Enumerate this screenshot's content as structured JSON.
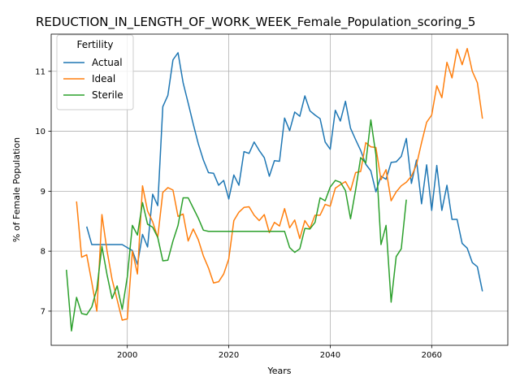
{
  "chart_data": {
    "type": "line",
    "title": "REDUCTION_IN_LENGTH_OF_WORK_WEEK_Female_Population_scoring_5",
    "xlabel": "Years",
    "ylabel": "% of Female Population",
    "xlim": [
      1985,
      2075
    ],
    "ylim": [
      6.43,
      11.62
    ],
    "xticks": [
      2000,
      2020,
      2040,
      2060
    ],
    "yticks": [
      7,
      8,
      9,
      10,
      11
    ],
    "grid": true,
    "legend": {
      "title": "Fertility",
      "placement": "upper-left"
    },
    "series": [
      {
        "name": "Actual",
        "color": "#1f77b4",
        "points": [
          [
            1992,
            8.41
          ],
          [
            1993,
            8.11
          ],
          [
            1994,
            8.11
          ],
          [
            1995,
            8.11
          ],
          [
            1996,
            8.11
          ],
          [
            1997,
            8.11
          ],
          [
            1998,
            8.11
          ],
          [
            1999,
            8.11
          ],
          [
            2000,
            8.06
          ],
          [
            2001,
            8.01
          ],
          [
            2002,
            7.78
          ],
          [
            2003,
            8.28
          ],
          [
            2004,
            8.07
          ],
          [
            2005,
            8.95
          ],
          [
            2006,
            8.76
          ],
          [
            2007,
            10.41
          ],
          [
            2008,
            10.6
          ],
          [
            2009,
            11.19
          ],
          [
            2010,
            11.31
          ],
          [
            2011,
            10.81
          ],
          [
            2012,
            10.47
          ],
          [
            2013,
            10.12
          ],
          [
            2014,
            9.79
          ],
          [
            2015,
            9.52
          ],
          [
            2016,
            9.31
          ],
          [
            2017,
            9.3
          ],
          [
            2018,
            9.1
          ],
          [
            2019,
            9.18
          ],
          [
            2020,
            8.87
          ],
          [
            2021,
            9.27
          ],
          [
            2022,
            9.1
          ],
          [
            2023,
            9.66
          ],
          [
            2024,
            9.63
          ],
          [
            2025,
            9.82
          ],
          [
            2026,
            9.68
          ],
          [
            2027,
            9.56
          ],
          [
            2028,
            9.25
          ],
          [
            2029,
            9.51
          ],
          [
            2030,
            9.5
          ],
          [
            2031,
            10.22
          ],
          [
            2032,
            10.01
          ],
          [
            2033,
            10.32
          ],
          [
            2034,
            10.25
          ],
          [
            2035,
            10.59
          ],
          [
            2036,
            10.34
          ],
          [
            2037,
            10.27
          ],
          [
            2038,
            10.21
          ],
          [
            2039,
            9.82
          ],
          [
            2040,
            9.7
          ],
          [
            2041,
            10.35
          ],
          [
            2042,
            10.17
          ],
          [
            2043,
            10.5
          ],
          [
            2044,
            10.05
          ],
          [
            2045,
            9.86
          ],
          [
            2046,
            9.68
          ],
          [
            2047,
            9.45
          ],
          [
            2048,
            9.34
          ],
          [
            2049,
            8.99
          ],
          [
            2050,
            9.25
          ],
          [
            2051,
            9.2
          ],
          [
            2052,
            9.48
          ],
          [
            2053,
            9.49
          ],
          [
            2054,
            9.58
          ],
          [
            2055,
            9.88
          ],
          [
            2056,
            9.13
          ],
          [
            2057,
            9.52
          ],
          [
            2058,
            8.79
          ],
          [
            2059,
            9.44
          ],
          [
            2060,
            8.68
          ],
          [
            2061,
            9.43
          ],
          [
            2062,
            8.68
          ],
          [
            2063,
            9.1
          ],
          [
            2064,
            8.53
          ],
          [
            2065,
            8.53
          ],
          [
            2066,
            8.13
          ],
          [
            2067,
            8.05
          ],
          [
            2068,
            7.81
          ],
          [
            2069,
            7.74
          ],
          [
            2070,
            7.33
          ]
        ]
      },
      {
        "name": "Ideal",
        "color": "#ff7f0e",
        "points": [
          [
            1990,
            8.83
          ],
          [
            1991,
            7.9
          ],
          [
            1992,
            7.94
          ],
          [
            1993,
            7.48
          ],
          [
            1994,
            7.0
          ],
          [
            1995,
            8.61
          ],
          [
            1996,
            8.01
          ],
          [
            1997,
            7.53
          ],
          [
            1998,
            7.19
          ],
          [
            1999,
            6.85
          ],
          [
            2000,
            6.87
          ],
          [
            2001,
            8.0
          ],
          [
            2002,
            7.62
          ],
          [
            2003,
            9.09
          ],
          [
            2004,
            8.67
          ],
          [
            2005,
            8.49
          ],
          [
            2006,
            8.23
          ],
          [
            2007,
            8.98
          ],
          [
            2008,
            9.06
          ],
          [
            2009,
            9.02
          ],
          [
            2010,
            8.58
          ],
          [
            2011,
            8.62
          ],
          [
            2012,
            8.17
          ],
          [
            2013,
            8.37
          ],
          [
            2014,
            8.19
          ],
          [
            2015,
            7.92
          ],
          [
            2016,
            7.72
          ],
          [
            2017,
            7.47
          ],
          [
            2018,
            7.49
          ],
          [
            2019,
            7.62
          ],
          [
            2020,
            7.87
          ],
          [
            2021,
            8.51
          ],
          [
            2022,
            8.65
          ],
          [
            2023,
            8.73
          ],
          [
            2024,
            8.74
          ],
          [
            2025,
            8.6
          ],
          [
            2026,
            8.51
          ],
          [
            2027,
            8.61
          ],
          [
            2028,
            8.31
          ],
          [
            2029,
            8.48
          ],
          [
            2030,
            8.42
          ],
          [
            2031,
            8.71
          ],
          [
            2032,
            8.39
          ],
          [
            2033,
            8.52
          ],
          [
            2034,
            8.21
          ],
          [
            2035,
            8.51
          ],
          [
            2036,
            8.38
          ],
          [
            2037,
            8.6
          ],
          [
            2038,
            8.6
          ],
          [
            2039,
            8.78
          ],
          [
            2040,
            8.75
          ],
          [
            2041,
            9.05
          ],
          [
            2042,
            9.11
          ],
          [
            2043,
            9.16
          ],
          [
            2044,
            9.01
          ],
          [
            2045,
            9.31
          ],
          [
            2046,
            9.33
          ],
          [
            2047,
            9.81
          ],
          [
            2048,
            9.74
          ],
          [
            2049,
            9.73
          ],
          [
            2050,
            9.19
          ],
          [
            2051,
            9.36
          ],
          [
            2052,
            8.84
          ],
          [
            2053,
            8.99
          ],
          [
            2054,
            9.09
          ],
          [
            2055,
            9.15
          ],
          [
            2056,
            9.25
          ],
          [
            2057,
            9.44
          ],
          [
            2058,
            9.81
          ],
          [
            2059,
            10.15
          ],
          [
            2060,
            10.27
          ],
          [
            2061,
            10.76
          ],
          [
            2062,
            10.56
          ],
          [
            2063,
            11.15
          ],
          [
            2064,
            10.89
          ],
          [
            2065,
            11.37
          ],
          [
            2066,
            11.11
          ],
          [
            2067,
            11.38
          ],
          [
            2068,
            11.0
          ],
          [
            2069,
            10.81
          ],
          [
            2070,
            10.21
          ]
        ]
      },
      {
        "name": "Sterile",
        "color": "#2ca02c",
        "points": [
          [
            1988,
            7.69
          ],
          [
            1989,
            6.67
          ],
          [
            1990,
            7.23
          ],
          [
            1991,
            6.96
          ],
          [
            1992,
            6.94
          ],
          [
            1993,
            7.07
          ],
          [
            1994,
            7.37
          ],
          [
            1995,
            8.08
          ],
          [
            1996,
            7.61
          ],
          [
            1997,
            7.21
          ],
          [
            1998,
            7.42
          ],
          [
            1999,
            7.03
          ],
          [
            2000,
            7.57
          ],
          [
            2001,
            8.43
          ],
          [
            2002,
            8.27
          ],
          [
            2003,
            8.81
          ],
          [
            2004,
            8.45
          ],
          [
            2005,
            8.4
          ],
          [
            2006,
            8.23
          ],
          [
            2007,
            7.84
          ],
          [
            2008,
            7.85
          ],
          [
            2009,
            8.17
          ],
          [
            2010,
            8.43
          ],
          [
            2011,
            8.89
          ],
          [
            2012,
            8.89
          ],
          [
            2013,
            8.72
          ],
          [
            2014,
            8.55
          ],
          [
            2015,
            8.35
          ],
          [
            2016,
            8.33
          ],
          [
            2017,
            8.33
          ],
          [
            2018,
            8.33
          ],
          [
            2019,
            8.33
          ],
          [
            2020,
            8.33
          ],
          [
            2021,
            8.33
          ],
          [
            2022,
            8.33
          ],
          [
            2023,
            8.33
          ],
          [
            2024,
            8.33
          ],
          [
            2025,
            8.33
          ],
          [
            2026,
            8.33
          ],
          [
            2027,
            8.33
          ],
          [
            2028,
            8.33
          ],
          [
            2029,
            8.33
          ],
          [
            2030,
            8.33
          ],
          [
            2031,
            8.33
          ],
          [
            2032,
            8.06
          ],
          [
            2033,
            7.98
          ],
          [
            2034,
            8.04
          ],
          [
            2035,
            8.38
          ],
          [
            2036,
            8.37
          ],
          [
            2037,
            8.48
          ],
          [
            2038,
            8.89
          ],
          [
            2039,
            8.84
          ],
          [
            2040,
            9.07
          ],
          [
            2041,
            9.18
          ],
          [
            2042,
            9.15
          ],
          [
            2043,
            9.01
          ],
          [
            2044,
            8.54
          ],
          [
            2045,
            9.02
          ],
          [
            2046,
            9.56
          ],
          [
            2047,
            9.47
          ],
          [
            2048,
            10.19
          ],
          [
            2049,
            9.61
          ],
          [
            2050,
            8.11
          ],
          [
            2051,
            8.43
          ],
          [
            2052,
            7.15
          ],
          [
            2053,
            7.91
          ],
          [
            2054,
            8.04
          ],
          [
            2055,
            8.86
          ]
        ]
      }
    ]
  }
}
